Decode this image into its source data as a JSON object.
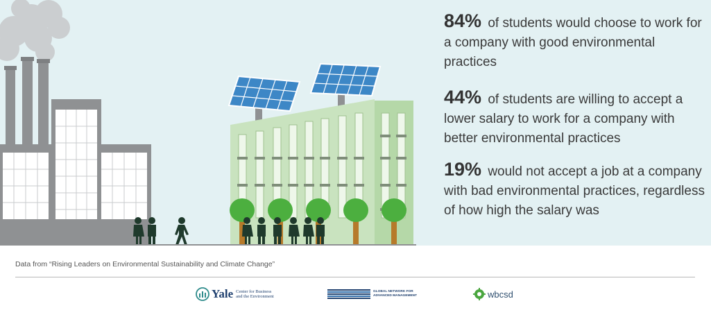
{
  "stats": [
    {
      "percent": "84%",
      "text": "of students would choose to work for a company with good environmental practices"
    },
    {
      "percent": "44%",
      "text": "of students are willing to accept a lower salary to work for a company with better environmental practices"
    },
    {
      "percent": "19%",
      "text": "would not accept a job at a company with bad environmental practices, regardless of how high the salary was"
    }
  ],
  "source": "Data from “Rising Leaders on Environmental Sustainability and Climate Change”",
  "logos": {
    "yale": {
      "word": "Yale",
      "subtitle_line1": "Center for Business",
      "subtitle_line2": "and the Environment"
    },
    "gnam": {
      "line1": "GLOBAL NETWORK FOR",
      "line2": "ADVANCED MANAGEMENT"
    },
    "wbcsd": {
      "word": "wbcsd"
    }
  },
  "colors": {
    "sky": "#e3f1f3",
    "factory": "#8f9193",
    "green_building": "#c9e3bf",
    "solar": "#3d87c6",
    "tree": "#4caf3f",
    "people": "#1f3a2c"
  }
}
